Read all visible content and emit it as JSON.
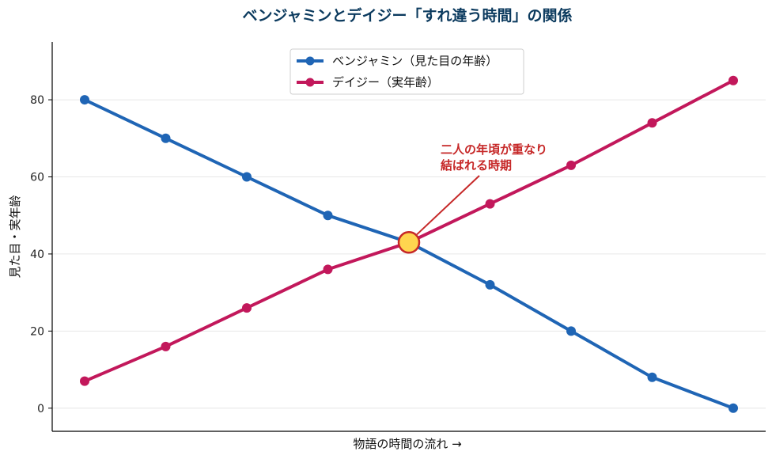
{
  "chart_data": {
    "type": "line",
    "title": "ベンジャミンとデイジー「すれ違う時間」の関係",
    "xlabel": "物語の時間の流れ →",
    "ylabel": "見た目・実年齢",
    "x": [
      0,
      1,
      2,
      3,
      4,
      5,
      6,
      7,
      8
    ],
    "xlim": [
      -0.4,
      8.4
    ],
    "ylim": [
      -6,
      95
    ],
    "yticks": [
      0,
      20,
      40,
      60,
      80
    ],
    "grid": "horizontal",
    "legend_position": "top-center",
    "series": [
      {
        "name": "ベンジャミン（見た目の年齢）",
        "color": "#1f65b5",
        "values": [
          80,
          70,
          60,
          50,
          43,
          32,
          20,
          8,
          0
        ]
      },
      {
        "name": "デイジー（実年齢）",
        "color": "#c2185b",
        "values": [
          7,
          16,
          26,
          36,
          43,
          53,
          63,
          74,
          85
        ]
      }
    ],
    "annotation": {
      "lines": [
        "二人の年頃が重なり",
        "結ばれる時期"
      ],
      "color": "#c62828",
      "point": {
        "x": 4,
        "y": 43
      },
      "marker_fill": "#ffd54f"
    }
  }
}
